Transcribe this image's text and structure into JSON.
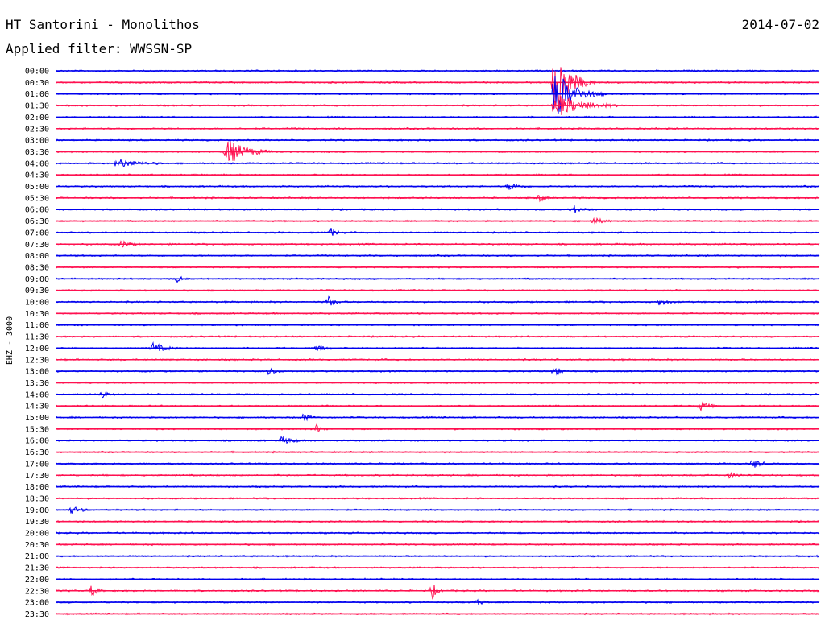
{
  "header": {
    "title": "HT Santorini - Monolithos",
    "date": "2014-07-02",
    "filter": "Applied filter: WWSSN-SP"
  },
  "chart_data": {
    "type": "line",
    "ylabel": "EHZ - 3000",
    "trace_colors": [
      "#0000ee",
      "#ff1050"
    ],
    "rows": [
      "00:00",
      "00:30",
      "01:00",
      "01:30",
      "02:00",
      "02:30",
      "03:00",
      "03:30",
      "04:00",
      "04:30",
      "05:00",
      "05:30",
      "06:00",
      "06:30",
      "07:00",
      "07:30",
      "08:00",
      "08:30",
      "09:00",
      "09:30",
      "10:00",
      "10:30",
      "11:00",
      "11:30",
      "12:00",
      "12:30",
      "13:00",
      "13:30",
      "14:00",
      "14:30",
      "15:00",
      "15:30",
      "16:00",
      "16:30",
      "17:00",
      "17:30",
      "18:00",
      "18:30",
      "19:00",
      "19:30",
      "20:00",
      "20:30",
      "21:00",
      "21:30",
      "22:00",
      "22:30",
      "23:00",
      "23:30"
    ],
    "x_range_minutes": [
      0,
      30
    ],
    "events": [
      {
        "row": 1,
        "minute": 19.6,
        "amplitude": 40,
        "duration": 1.6
      },
      {
        "row": 2,
        "minute": 19.6,
        "amplitude": 30,
        "duration": 2.0
      },
      {
        "row": 3,
        "minute": 19.6,
        "amplitude": 16,
        "duration": 2.5
      },
      {
        "row": 7,
        "minute": 6.7,
        "amplitude": 17,
        "duration": 1.8
      },
      {
        "row": 8,
        "minute": 2.4,
        "amplitude": 6,
        "duration": 1.8
      },
      {
        "row": 10,
        "minute": 17.8,
        "amplitude": 5,
        "duration": 0.9
      },
      {
        "row": 11,
        "minute": 19.0,
        "amplitude": 4,
        "duration": 0.6
      },
      {
        "row": 12,
        "minute": 20.3,
        "amplitude": 5,
        "duration": 0.8
      },
      {
        "row": 13,
        "minute": 21.1,
        "amplitude": 4,
        "duration": 1.0
      },
      {
        "row": 14,
        "minute": 10.8,
        "amplitude": 5,
        "duration": 0.6
      },
      {
        "row": 15,
        "minute": 2.6,
        "amplitude": 5,
        "duration": 0.6
      },
      {
        "row": 18,
        "minute": 4.8,
        "amplitude": 5,
        "duration": 0.4
      },
      {
        "row": 20,
        "minute": 10.7,
        "amplitude": 7,
        "duration": 0.6
      },
      {
        "row": 20,
        "minute": 23.7,
        "amplitude": 4,
        "duration": 0.8
      },
      {
        "row": 24,
        "minute": 3.8,
        "amplitude": 6,
        "duration": 1.2
      },
      {
        "row": 24,
        "minute": 10.3,
        "amplitude": 5,
        "duration": 0.6
      },
      {
        "row": 26,
        "minute": 8.4,
        "amplitude": 6,
        "duration": 0.5
      },
      {
        "row": 26,
        "minute": 19.6,
        "amplitude": 5,
        "duration": 0.8
      },
      {
        "row": 28,
        "minute": 1.8,
        "amplitude": 4,
        "duration": 0.6
      },
      {
        "row": 29,
        "minute": 25.3,
        "amplitude": 6,
        "duration": 0.8
      },
      {
        "row": 30,
        "minute": 9.7,
        "amplitude": 5,
        "duration": 0.6
      },
      {
        "row": 31,
        "minute": 10.2,
        "amplitude": 6,
        "duration": 0.5
      },
      {
        "row": 32,
        "minute": 8.9,
        "amplitude": 6,
        "duration": 0.8
      },
      {
        "row": 34,
        "minute": 27.4,
        "amplitude": 6,
        "duration": 0.8
      },
      {
        "row": 35,
        "minute": 26.5,
        "amplitude": 4,
        "duration": 0.6
      },
      {
        "row": 38,
        "minute": 0.6,
        "amplitude": 5,
        "duration": 0.8
      },
      {
        "row": 45,
        "minute": 1.4,
        "amplitude": 9,
        "duration": 0.4
      },
      {
        "row": 45,
        "minute": 14.8,
        "amplitude": 10,
        "duration": 0.4
      },
      {
        "row": 46,
        "minute": 16.5,
        "amplitude": 4,
        "duration": 0.6
      }
    ]
  }
}
